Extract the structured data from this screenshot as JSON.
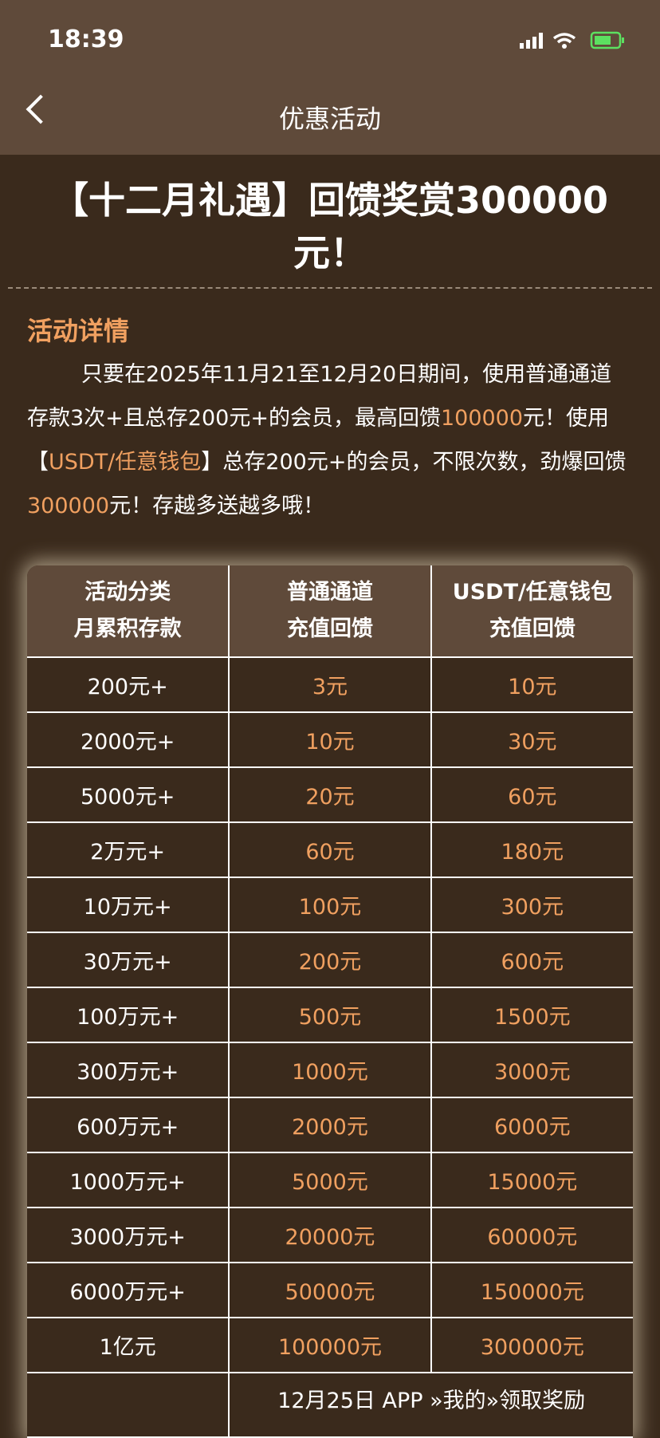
{
  "status": {
    "time": "18:39"
  },
  "nav": {
    "title": "优惠活动"
  },
  "title": "【十二月礼遇】回馈奖赏300000元！",
  "section_heading": "活动详情",
  "paragraph": [
    "只要在2025年11月21至12月20日期间，使用普通通道存款3次+且总存200元+的会员，最高回馈",
    "100000",
    "元！使用【",
    "USDT/任意钱包",
    "】总存200元+的会员，不限次数，劲爆回馈",
    "300000",
    "元！存越多送越多哦！"
  ],
  "table": {
    "header": [
      [
        "活动分类",
        "月累积存款"
      ],
      [
        "普通通道",
        "充值回馈"
      ],
      [
        "USDT/任意钱包",
        "充值回馈"
      ]
    ],
    "rows": [
      [
        "200元+",
        "3元",
        "10元"
      ],
      [
        "2000元+",
        "10元",
        "30元"
      ],
      [
        "5000元+",
        "20元",
        "60元"
      ],
      [
        "2万元+",
        "60元",
        "180元"
      ],
      [
        "10万元+",
        "100元",
        "300元"
      ],
      [
        "30万元+",
        "200元",
        "600元"
      ],
      [
        "100万元+",
        "500元",
        "1500元"
      ],
      [
        "300万元+",
        "1000元",
        "3000元"
      ],
      [
        "600万元+",
        "2000元",
        "6000元"
      ],
      [
        "1000万元+",
        "5000元",
        "15000元"
      ],
      [
        "3000万元+",
        "20000元",
        "60000元"
      ],
      [
        "6000万元+",
        "50000元",
        "150000元"
      ],
      [
        "1亿元",
        "100000元",
        "300000元"
      ]
    ],
    "footer_note": "12月25日 APP »我的»领取奖励"
  }
}
